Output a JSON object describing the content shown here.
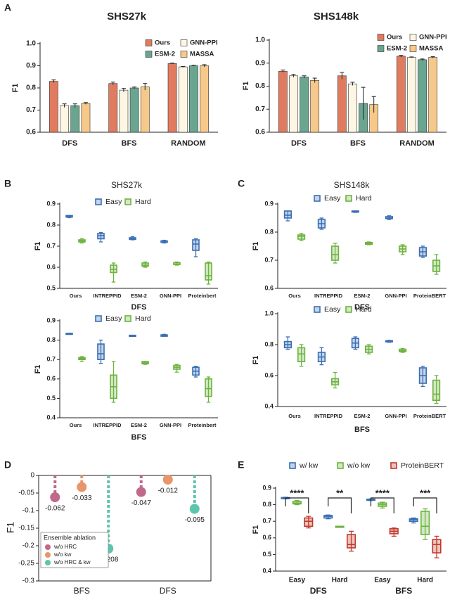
{
  "panel_labels": [
    "A",
    "B",
    "C",
    "D",
    "E"
  ],
  "chart_data": [
    {
      "type": "bar",
      "title": "SHS27k",
      "ylabel": "F1",
      "categories": [
        "DFS",
        "BFS",
        "RANDOM"
      ],
      "ylim": [
        0.6,
        1.0
      ],
      "yticks": [
        0.6,
        0.7,
        0.8,
        0.9,
        {
          "value": 1.0,
          "label": "1.0"
        }
      ],
      "series": [
        {
          "name": "Ours",
          "color": "#e07b5f",
          "values": [
            0.83,
            0.82,
            0.91
          ],
          "errors": [
            0.006,
            0.006,
            0.002
          ]
        },
        {
          "name": "GNN-PPI",
          "color": "#fdf6e3",
          "values": [
            0.72,
            0.79,
            0.895
          ],
          "errors": [
            0.008,
            0.008,
            0.002
          ]
        },
        {
          "name": "ESM-2",
          "color": "#6aa58f",
          "values": [
            0.72,
            0.8,
            0.9
          ],
          "errors": [
            0.008,
            0.004,
            0.002
          ]
        },
        {
          "name": "MASSA",
          "color": "#f6c98a",
          "values": [
            0.73,
            0.805,
            0.9
          ],
          "errors": [
            0.004,
            0.015,
            0.005
          ]
        }
      ]
    },
    {
      "type": "bar",
      "title": "SHS148k",
      "ylabel": "F1",
      "categories": [
        "DFS",
        "BFS",
        "RANDOM"
      ],
      "ylim": [
        0.6,
        1.0
      ],
      "yticks": [
        0.6,
        0.7,
        0.8,
        0.9,
        {
          "value": 1.0,
          "label": "1.0"
        }
      ],
      "series": [
        {
          "name": "Ours",
          "color": "#e07b5f",
          "values": [
            0.865,
            0.845,
            0.93
          ],
          "errors": [
            0.005,
            0.015,
            0.004
          ]
        },
        {
          "name": "GNN-PPI",
          "color": "#fdf6e3",
          "values": [
            0.845,
            0.81,
            0.925
          ],
          "errors": [
            0.006,
            0.007,
            0.002
          ]
        },
        {
          "name": "ESM-2",
          "color": "#6aa58f",
          "values": [
            0.84,
            0.725,
            0.915
          ],
          "errors": [
            0.005,
            0.07,
            0.003
          ]
        },
        {
          "name": "MASSA",
          "color": "#f6c98a",
          "values": [
            0.825,
            0.72,
            0.925
          ],
          "errors": [
            0.01,
            0.035,
            0.003
          ]
        }
      ]
    },
    {
      "type": "box",
      "title": "SHS27k",
      "xlabel": "DFS",
      "ylabel": "F1",
      "categories": [
        "Ours",
        "INTREPPID",
        "ESM-2",
        "GNN-PPI",
        "Proteinbert"
      ],
      "ylim": [
        0.5,
        0.9
      ],
      "yticks": [
        0.5,
        0.6,
        0.7,
        0.8,
        0.9
      ],
      "series": [
        {
          "name": "Easy",
          "color": "#3a6fb5",
          "values": [
            [
              0.835,
              0.838,
              0.84,
              0.845,
              0.845
            ],
            [
              0.72,
              0.735,
              0.75,
              0.76,
              0.765
            ],
            [
              0.73,
              0.732,
              0.735,
              0.74,
              0.745
            ],
            [
              0.715,
              0.718,
              0.72,
              0.725,
              0.728
            ],
            [
              0.65,
              0.68,
              0.71,
              0.73,
              0.735
            ]
          ]
        },
        {
          "name": "Hard",
          "color": "#6db33f",
          "values": [
            [
              0.715,
              0.72,
              0.725,
              0.73,
              0.735
            ],
            [
              0.53,
              0.575,
              0.59,
              0.61,
              0.62
            ],
            [
              0.6,
              0.605,
              0.61,
              0.62,
              0.625
            ],
            [
              0.61,
              0.613,
              0.615,
              0.622,
              0.625
            ],
            [
              0.52,
              0.54,
              0.56,
              0.62,
              0.625
            ]
          ]
        }
      ]
    },
    {
      "type": "box",
      "xlabel": "BFS",
      "ylabel": "F1",
      "categories": [
        "Ours",
        "INTREPPID",
        "ESM-2",
        "GNN-PPI",
        "Proteinbert"
      ],
      "ylim": [
        0.4,
        0.9
      ],
      "yticks": [
        0.4,
        0.5,
        0.6,
        0.7,
        0.8,
        0.9
      ],
      "series": [
        {
          "name": "Easy",
          "color": "#3a6fb5",
          "values": [
            [
              0.83,
              0.83,
              0.832,
              0.835,
              0.835
            ],
            [
              0.68,
              0.7,
              0.73,
              0.78,
              0.8
            ],
            [
              0.82,
              0.82,
              0.822,
              0.825,
              0.825
            ],
            [
              0.82,
              0.82,
              0.822,
              0.827,
              0.83
            ],
            [
              0.61,
              0.62,
              0.64,
              0.66,
              0.665
            ]
          ]
        },
        {
          "name": "Hard",
          "color": "#6db33f",
          "values": [
            [
              0.69,
              0.7,
              0.705,
              0.71,
              0.715
            ],
            [
              0.48,
              0.5,
              0.56,
              0.62,
              0.69
            ],
            [
              0.675,
              0.678,
              0.683,
              0.69,
              0.69
            ],
            [
              0.635,
              0.65,
              0.66,
              0.67,
              0.675
            ],
            [
              0.48,
              0.51,
              0.55,
              0.6,
              0.61
            ]
          ]
        }
      ]
    },
    {
      "type": "box",
      "title": "SHS148k",
      "xlabel": "DFS",
      "ylabel": "F1",
      "categories": [
        "Ours",
        "INTREPPID",
        "ESM-2",
        "GNN-PPI",
        "ProteinBERT"
      ],
      "ylim": [
        0.6,
        0.9
      ],
      "yticks": [
        0.6,
        0.7,
        0.8,
        0.9
      ],
      "series": [
        {
          "name": "Easy",
          "color": "#3a6fb5",
          "values": [
            [
              0.84,
              0.85,
              0.86,
              0.875,
              0.875
            ],
            [
              0.81,
              0.815,
              0.83,
              0.845,
              0.85
            ],
            [
              0.87,
              0.872,
              0.873,
              0.875,
              0.875
            ],
            [
              0.845,
              0.848,
              0.85,
              0.855,
              0.858
            ],
            [
              0.71,
              0.715,
              0.73,
              0.745,
              0.75
            ]
          ]
        },
        {
          "name": "Hard",
          "color": "#6db33f",
          "values": [
            [
              0.77,
              0.775,
              0.785,
              0.79,
              0.795
            ],
            [
              0.69,
              0.7,
              0.72,
              0.75,
              0.76
            ],
            [
              0.755,
              0.757,
              0.76,
              0.763,
              0.765
            ],
            [
              0.72,
              0.73,
              0.74,
              0.75,
              0.755
            ],
            [
              0.65,
              0.66,
              0.68,
              0.7,
              0.72
            ]
          ]
        }
      ]
    },
    {
      "type": "box",
      "xlabel": "BFS",
      "ylabel": "F1",
      "categories": [
        "Ours",
        "INTREPPID",
        "ESM-2",
        "GNN-PPI",
        "ProteinBERT"
      ],
      "ylim": [
        0.4,
        1.0
      ],
      "yticks": [
        0.4,
        0.6,
        0.8,
        {
          "value": 1.0,
          "label": "1.0"
        }
      ],
      "series": [
        {
          "name": "Easy",
          "color": "#3a6fb5",
          "values": [
            [
              0.77,
              0.78,
              0.8,
              0.82,
              0.85
            ],
            [
              0.67,
              0.69,
              0.72,
              0.75,
              0.78
            ],
            [
              0.77,
              0.78,
              0.81,
              0.84,
              0.85
            ],
            [
              0.815,
              0.818,
              0.82,
              0.825,
              0.828
            ],
            [
              0.53,
              0.55,
              0.6,
              0.65,
              0.66
            ]
          ]
        },
        {
          "name": "Hard",
          "color": "#6db33f",
          "values": [
            [
              0.66,
              0.69,
              0.74,
              0.78,
              0.8
            ],
            [
              0.52,
              0.54,
              0.56,
              0.58,
              0.62
            ],
            [
              0.74,
              0.75,
              0.77,
              0.79,
              0.8
            ],
            [
              0.75,
              0.755,
              0.76,
              0.77,
              0.775
            ],
            [
              0.42,
              0.44,
              0.48,
              0.57,
              0.6
            ]
          ]
        }
      ]
    },
    {
      "type": "dot",
      "ylabel": "F1",
      "categories": [
        "BFS",
        "DFS"
      ],
      "ylim": [
        -0.3,
        0
      ],
      "yticks": [
        0,
        -0.05,
        -0.1,
        -0.15,
        -0.2,
        -0.25,
        -0.3
      ],
      "legend_title": "Ensemble ablation",
      "series": [
        {
          "name": "w/o HRC",
          "color": "#c0698a",
          "values": [
            -0.062,
            -0.047
          ]
        },
        {
          "name": "w/o kw",
          "color": "#e8956a",
          "values": [
            -0.033,
            -0.012
          ]
        },
        {
          "name": "w/o HRC & kw",
          "color": "#5ec4ae",
          "values": [
            -0.208,
            -0.095
          ]
        }
      ]
    },
    {
      "type": "box",
      "ylabel": "F1",
      "categories": [
        "Easy",
        "Hard",
        "Easy",
        "Hard"
      ],
      "group_labels": [
        "DFS",
        "BFS"
      ],
      "significance": [
        "****",
        "**",
        "****",
        "***"
      ],
      "ylim": [
        0.4,
        0.9
      ],
      "yticks": [
        0.4,
        0.5,
        0.6,
        0.7,
        0.8,
        0.9
      ],
      "series": [
        {
          "name": "w/ kw",
          "color": "#3a6fb5",
          "values": [
            [
              0.835,
              0.838,
              0.84,
              0.843,
              0.845
            ],
            [
              0.715,
              0.72,
              0.73,
              0.735,
              0.738
            ],
            [
              0.825,
              0.828,
              0.83,
              0.833,
              0.835
            ],
            [
              0.69,
              0.7,
              0.71,
              0.715,
              0.72
            ]
          ]
        },
        {
          "name": "w/o kw",
          "color": "#6db33f",
          "values": [
            [
              0.8,
              0.805,
              0.81,
              0.82,
              0.825
            ],
            [
              0.665,
              0.665,
              0.667,
              0.67,
              0.67
            ],
            [
              0.78,
              0.79,
              0.8,
              0.81,
              0.815
            ],
            [
              0.59,
              0.62,
              0.67,
              0.76,
              0.775
            ]
          ]
        },
        {
          "name": "ProteinBERT",
          "color": "#c0392b",
          "values": [
            [
              0.66,
              0.67,
              0.7,
              0.72,
              0.73
            ],
            [
              0.52,
              0.54,
              0.56,
              0.62,
              0.64
            ],
            [
              0.61,
              0.625,
              0.64,
              0.655,
              0.66
            ],
            [
              0.48,
              0.51,
              0.56,
              0.59,
              0.61
            ]
          ]
        }
      ]
    }
  ]
}
